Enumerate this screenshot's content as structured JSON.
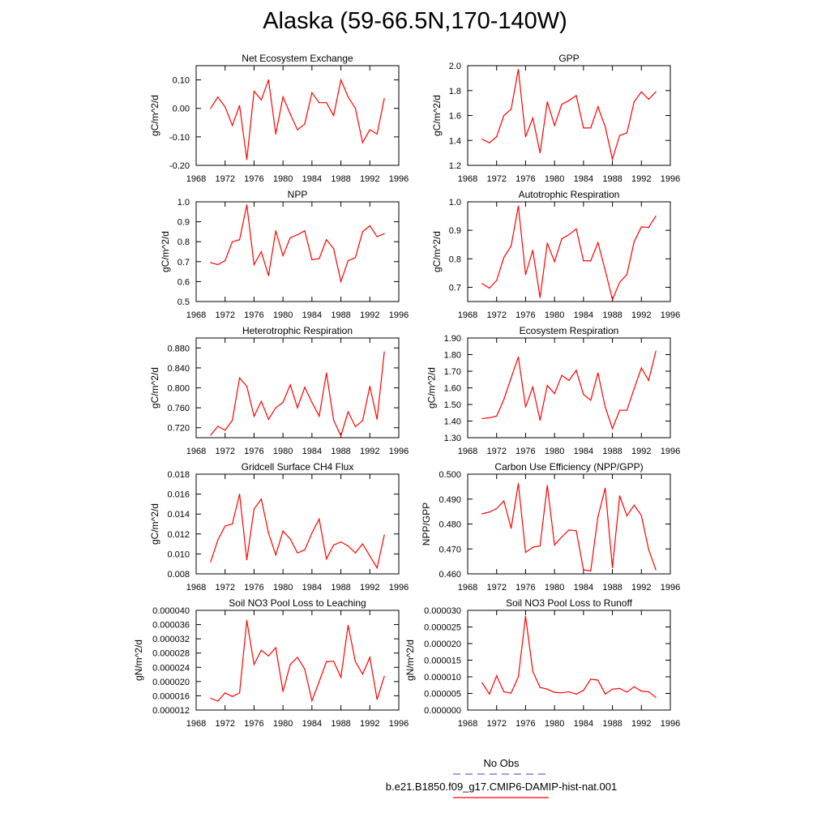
{
  "title": "Alaska (59-66.5N,170-140W)",
  "chart_data": [
    {
      "type": "line",
      "title": "Net Ecosystem Exchange",
      "ylabel": "gC/m^2/d",
      "ylim": [
        -0.2,
        0.15
      ],
      "yticks": [
        -0.2,
        -0.1,
        0.0,
        0.1
      ],
      "ytick_labels": [
        "-0.20",
        "-0.10",
        "0.00",
        "0.10"
      ],
      "x": [
        1970,
        1971,
        1972,
        1973,
        1974,
        1975,
        1976,
        1977,
        1978,
        1979,
        1980,
        1981,
        1982,
        1983,
        1984,
        1985,
        1986,
        1987,
        1988,
        1989,
        1990,
        1991,
        1992,
        1993,
        1994
      ],
      "series": [
        {
          "values": [
            0.0,
            0.04,
            0.005,
            -0.06,
            0.01,
            -0.18,
            0.06,
            0.03,
            0.1,
            -0.09,
            0.04,
            -0.02,
            -0.075,
            -0.055,
            0.055,
            0.02,
            0.02,
            -0.025,
            0.1,
            0.04,
            0.0,
            -0.12,
            -0.075,
            -0.09,
            0.035
          ]
        }
      ]
    },
    {
      "type": "line",
      "title": "GPP",
      "ylabel": "gC/m^2/d",
      "ylim": [
        1.2,
        2.0
      ],
      "yticks": [
        1.2,
        1.4,
        1.6,
        1.8,
        2.0
      ],
      "ytick_labels": [
        "1.2",
        "1.4",
        "1.6",
        "1.8",
        "2.0"
      ],
      "x": [
        1970,
        1971,
        1972,
        1973,
        1974,
        1975,
        1976,
        1977,
        1978,
        1979,
        1980,
        1981,
        1982,
        1983,
        1984,
        1985,
        1986,
        1987,
        1988,
        1989,
        1990,
        1991,
        1992,
        1993,
        1994
      ],
      "series": [
        {
          "values": [
            1.41,
            1.38,
            1.43,
            1.6,
            1.65,
            1.97,
            1.43,
            1.58,
            1.3,
            1.71,
            1.52,
            1.69,
            1.72,
            1.76,
            1.5,
            1.5,
            1.67,
            1.51,
            1.25,
            1.44,
            1.46,
            1.71,
            1.79,
            1.73,
            1.79
          ]
        }
      ]
    },
    {
      "type": "line",
      "title": "NPP",
      "ylabel": "gC/m^2/d",
      "ylim": [
        0.5,
        1.0
      ],
      "yticks": [
        0.5,
        0.6,
        0.7,
        0.8,
        0.9,
        1.0
      ],
      "ytick_labels": [
        "0.5",
        "0.6",
        "0.7",
        "0.8",
        "0.9",
        "1.0"
      ],
      "x": [
        1970,
        1971,
        1972,
        1973,
        1974,
        1975,
        1976,
        1977,
        1978,
        1979,
        1980,
        1981,
        1982,
        1983,
        1984,
        1985,
        1986,
        1987,
        1988,
        1989,
        1990,
        1991,
        1992,
        1993,
        1994
      ],
      "series": [
        {
          "values": [
            0.695,
            0.685,
            0.705,
            0.8,
            0.81,
            0.985,
            0.685,
            0.75,
            0.63,
            0.855,
            0.73,
            0.82,
            0.835,
            0.855,
            0.71,
            0.715,
            0.81,
            0.765,
            0.6,
            0.705,
            0.72,
            0.85,
            0.88,
            0.825,
            0.84
          ]
        }
      ]
    },
    {
      "type": "line",
      "title": "Autotrophic Respiration",
      "ylabel": "gC/m^2/d",
      "ylim": [
        0.65,
        1.0
      ],
      "yticks": [
        0.7,
        0.8,
        0.9,
        1.0
      ],
      "ytick_labels": [
        "0.7",
        "0.8",
        "0.9",
        "1.0"
      ],
      "x": [
        1970,
        1971,
        1972,
        1973,
        1974,
        1975,
        1976,
        1977,
        1978,
        1979,
        1980,
        1981,
        1982,
        1983,
        1984,
        1985,
        1986,
        1987,
        1988,
        1989,
        1990,
        1991,
        1992,
        1993,
        1994
      ],
      "series": [
        {
          "values": [
            0.713,
            0.697,
            0.724,
            0.805,
            0.845,
            0.985,
            0.745,
            0.83,
            0.664,
            0.855,
            0.79,
            0.87,
            0.885,
            0.905,
            0.793,
            0.793,
            0.857,
            0.76,
            0.657,
            0.717,
            0.745,
            0.86,
            0.912,
            0.91,
            0.95
          ]
        }
      ]
    },
    {
      "type": "line",
      "title": "Heterotrophic Respiration",
      "ylabel": "gC/m^2/d",
      "ylim": [
        0.7,
        0.9
      ],
      "yticks": [
        0.72,
        0.76,
        0.8,
        0.84,
        0.88
      ],
      "ytick_labels": [
        "0.720",
        "0.760",
        "0.800",
        "0.840",
        "0.880"
      ],
      "x": [
        1970,
        1971,
        1972,
        1973,
        1974,
        1975,
        1976,
        1977,
        1978,
        1979,
        1980,
        1981,
        1982,
        1983,
        1984,
        1985,
        1986,
        1987,
        1988,
        1989,
        1990,
        1991,
        1992,
        1993,
        1994
      ],
      "series": [
        {
          "values": [
            0.705,
            0.723,
            0.715,
            0.735,
            0.82,
            0.803,
            0.743,
            0.773,
            0.737,
            0.76,
            0.771,
            0.806,
            0.76,
            0.801,
            0.771,
            0.743,
            0.83,
            0.735,
            0.704,
            0.752,
            0.722,
            0.734,
            0.803,
            0.737,
            0.872
          ]
        }
      ]
    },
    {
      "type": "line",
      "title": "Ecosystem Respiration",
      "ylabel": "gC/m^2/d",
      "ylim": [
        1.3,
        1.9
      ],
      "yticks": [
        1.3,
        1.4,
        1.5,
        1.6,
        1.7,
        1.8,
        1.9
      ],
      "ytick_labels": [
        "1.30",
        "1.40",
        "1.50",
        "1.60",
        "1.70",
        "1.80",
        "1.90"
      ],
      "x": [
        1970,
        1971,
        1972,
        1973,
        1974,
        1975,
        1976,
        1977,
        1978,
        1979,
        1980,
        1981,
        1982,
        1983,
        1984,
        1985,
        1986,
        1987,
        1988,
        1989,
        1990,
        1991,
        1992,
        1993,
        1994
      ],
      "series": [
        {
          "values": [
            1.415,
            1.42,
            1.43,
            1.53,
            1.66,
            1.785,
            1.485,
            1.605,
            1.405,
            1.615,
            1.565,
            1.675,
            1.645,
            1.705,
            1.56,
            1.525,
            1.69,
            1.485,
            1.355,
            1.465,
            1.465,
            1.595,
            1.72,
            1.645,
            1.82
          ]
        }
      ]
    },
    {
      "type": "line",
      "title": "Gridcell Surface CH4 Flux",
      "ylabel": "gC/m^2/d",
      "ylim": [
        0.008,
        0.018
      ],
      "yticks": [
        0.008,
        0.01,
        0.012,
        0.014,
        0.016,
        0.018
      ],
      "ytick_labels": [
        "0.008",
        "0.010",
        "0.012",
        "0.014",
        "0.016",
        "0.018"
      ],
      "x": [
        1970,
        1971,
        1972,
        1973,
        1974,
        1975,
        1976,
        1977,
        1978,
        1979,
        1980,
        1981,
        1982,
        1983,
        1984,
        1985,
        1986,
        1987,
        1988,
        1989,
        1990,
        1991,
        1992,
        1993,
        1994
      ],
      "series": [
        {
          "values": [
            0.0092,
            0.0114,
            0.0128,
            0.013,
            0.016,
            0.0094,
            0.0145,
            0.0155,
            0.0121,
            0.0099,
            0.0123,
            0.0115,
            0.0101,
            0.0104,
            0.0121,
            0.0135,
            0.0095,
            0.0109,
            0.0112,
            0.0108,
            0.0101,
            0.011,
            0.0098,
            0.0086,
            0.0119
          ]
        }
      ]
    },
    {
      "type": "line",
      "title": "Carbon Use Efficiency (NPP/GPP)",
      "ylabel": "NPP/GPP",
      "ylim": [
        0.46,
        0.5
      ],
      "yticks": [
        0.46,
        0.47,
        0.48,
        0.49,
        0.5
      ],
      "ytick_labels": [
        "0.460",
        "0.470",
        "0.480",
        "0.490",
        "0.500"
      ],
      "x": [
        1970,
        1971,
        1972,
        1973,
        1974,
        1975,
        1976,
        1977,
        1978,
        1979,
        1980,
        1981,
        1982,
        1983,
        1984,
        1985,
        1986,
        1987,
        1988,
        1989,
        1990,
        1991,
        1992,
        1993,
        1994
      ],
      "series": [
        {
          "values": [
            0.4841,
            0.4848,
            0.4862,
            0.4893,
            0.4783,
            0.4962,
            0.4686,
            0.4707,
            0.4712,
            0.4955,
            0.4716,
            0.4748,
            0.4776,
            0.4773,
            0.4616,
            0.4612,
            0.4829,
            0.4944,
            0.4625,
            0.4913,
            0.4833,
            0.4876,
            0.4834,
            0.4698,
            0.4616
          ]
        }
      ]
    },
    {
      "type": "line",
      "title": "Soil NO3 Pool Loss to Leaching",
      "ylabel": "gN/m^2/d",
      "ylim": [
        1.2e-05,
        4e-05
      ],
      "yticks": [
        1.2e-05,
        1.6e-05,
        2e-05,
        2.4e-05,
        2.8e-05,
        3.2e-05,
        3.6e-05,
        4e-05
      ],
      "ytick_labels": [
        "0.000012",
        "0.000016",
        "0.000020",
        "0.000024",
        "0.000028",
        "0.000032",
        "0.000036",
        "0.000040"
      ],
      "x": [
        1970,
        1971,
        1972,
        1973,
        1974,
        1975,
        1976,
        1977,
        1978,
        1979,
        1980,
        1981,
        1982,
        1983,
        1984,
        1985,
        1986,
        1987,
        1988,
        1989,
        1990,
        1991,
        1992,
        1993,
        1994
      ],
      "series": [
        {
          "values": [
            1.53e-05,
            1.45e-05,
            1.68e-05,
            1.58e-05,
            1.68e-05,
            3.72e-05,
            2.48e-05,
            2.88e-05,
            2.72e-05,
            2.95e-05,
            1.72e-05,
            2.48e-05,
            2.68e-05,
            2.35e-05,
            1.46e-05,
            2e-05,
            2.56e-05,
            2.57e-05,
            2.12e-05,
            3.58e-05,
            2.56e-05,
            2.21e-05,
            2.68e-05,
            1.5e-05,
            2.15e-05
          ]
        }
      ]
    },
    {
      "type": "line",
      "title": "Soil NO3 Pool Loss to Runoff",
      "ylabel": "gN/m^2/d",
      "ylim": [
        0,
        3e-05
      ],
      "yticks": [
        0,
        5e-06,
        1e-05,
        1.5e-05,
        2e-05,
        2.5e-05,
        3e-05
      ],
      "ytick_labels": [
        "0.000000",
        "0.000005",
        "0.000010",
        "0.000015",
        "0.000020",
        "0.000025",
        "0.000030"
      ],
      "x": [
        1970,
        1971,
        1972,
        1973,
        1974,
        1975,
        1976,
        1977,
        1978,
        1979,
        1980,
        1981,
        1982,
        1983,
        1984,
        1985,
        1986,
        1987,
        1988,
        1989,
        1990,
        1991,
        1992,
        1993,
        1994
      ],
      "series": [
        {
          "values": [
            8.2e-06,
            4.8e-06,
            1.03e-05,
            5.5e-06,
            5.1e-06,
            1e-05,
            2.82e-05,
            1.16e-05,
            6.8e-06,
            6.3e-06,
            5.3e-06,
            5.2e-06,
            5.5e-06,
            4.8e-06,
            5.9e-06,
            9.3e-06,
            9e-06,
            4.8e-06,
            6.3e-06,
            6.5e-06,
            5.4e-06,
            7e-06,
            5.7e-06,
            5.5e-06,
            3.8e-06
          ]
        }
      ]
    }
  ],
  "xaxis": {
    "xlim": [
      1968,
      1996
    ],
    "ticks": [
      1968,
      1972,
      1976,
      1980,
      1984,
      1988,
      1992,
      1996
    ]
  },
  "line_color": "#ff0000",
  "legend": [
    {
      "label": "No Obs",
      "color": "#6666cc",
      "style": "dashed"
    },
    {
      "label": "b.e21.B1850.f09_g17.CMIP6-DAMIP-hist-nat.001",
      "color": "#ff0000",
      "style": "solid"
    }
  ]
}
